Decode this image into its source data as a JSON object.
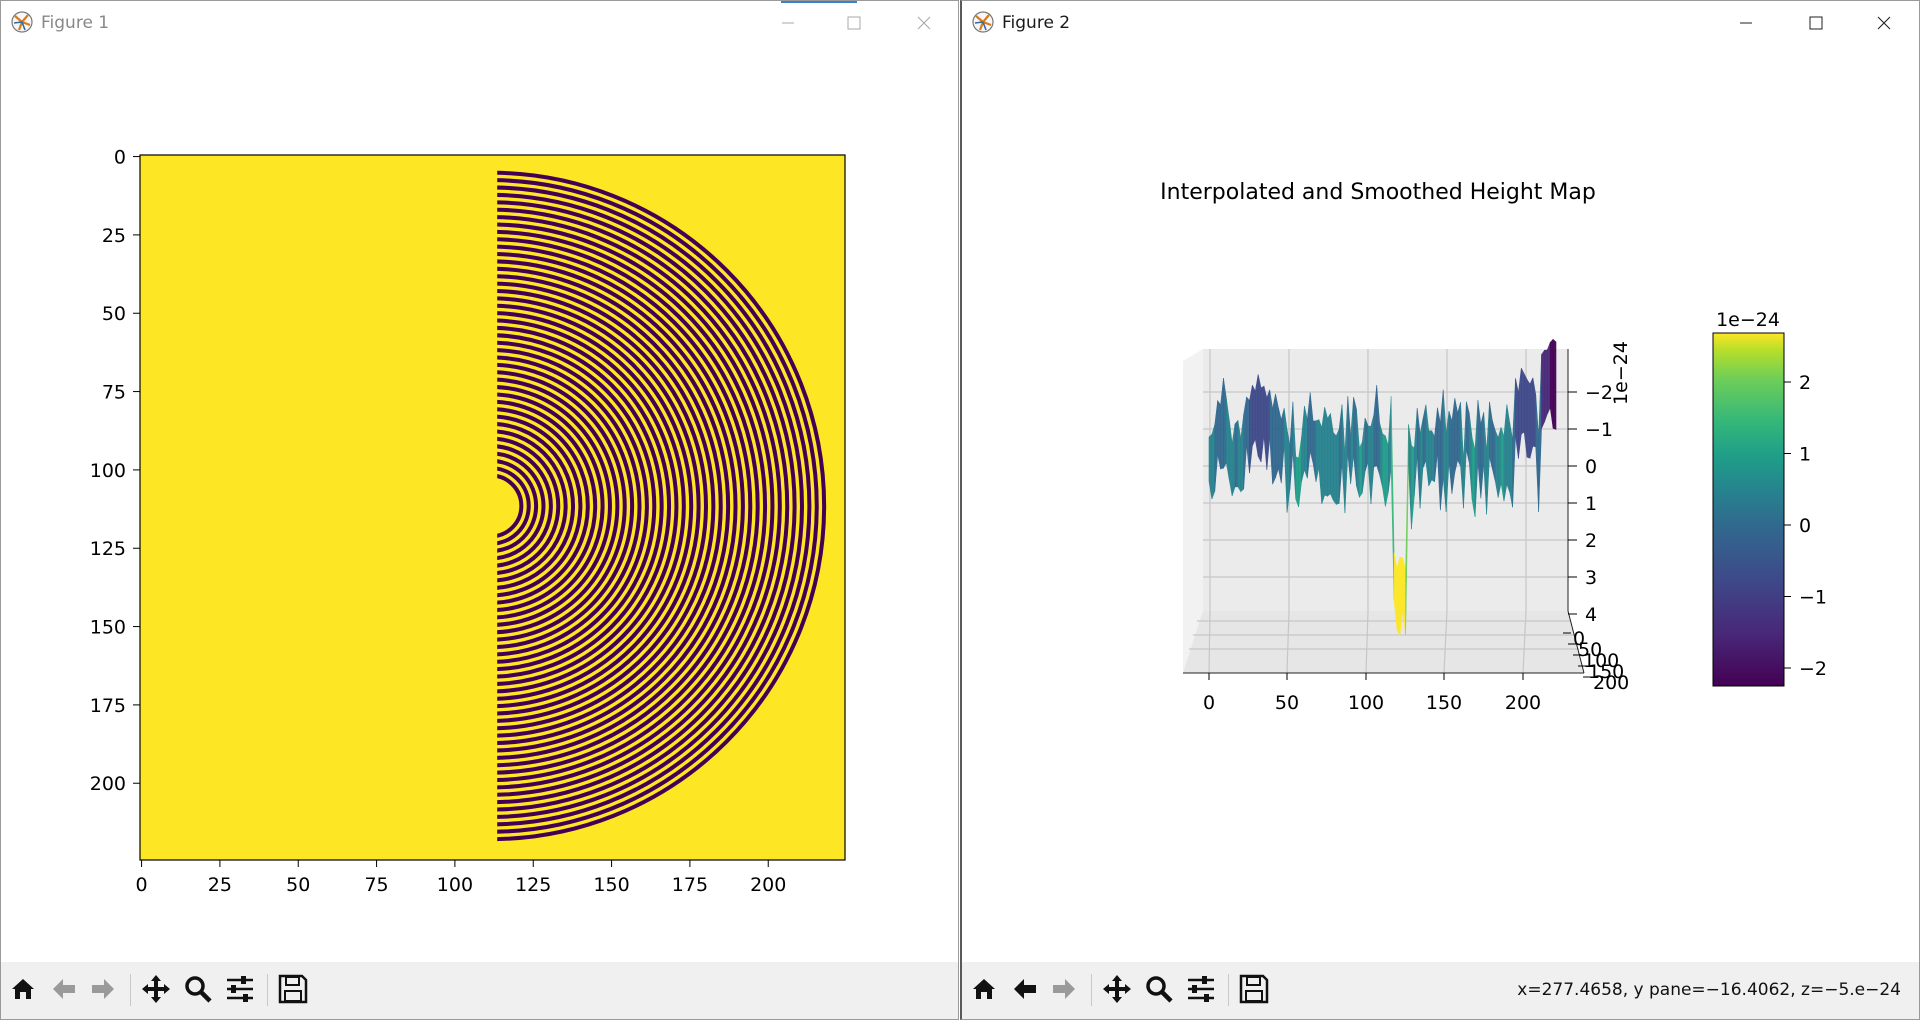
{
  "figure1": {
    "title": "Figure 1",
    "x_ticks": [
      "0",
      "25",
      "50",
      "75",
      "100",
      "125",
      "150",
      "175",
      "200"
    ],
    "y_ticks": [
      "0",
      "25",
      "50",
      "75",
      "100",
      "125",
      "150",
      "175",
      "200"
    ],
    "image_colors": {
      "background": "#fde725",
      "rings": "#440154"
    }
  },
  "figure2": {
    "title": "Figure 2",
    "plot_title": "Interpolated and Smoothed Height Map",
    "x_ticks": [
      "0",
      "50",
      "100",
      "150",
      "200"
    ],
    "y_ticks": [
      "0",
      "50",
      "100",
      "150",
      "200"
    ],
    "z_ticks": [
      "−2",
      "−1",
      "0",
      "1",
      "2",
      "3",
      "4"
    ],
    "z_offset": "1e−24",
    "colorbar": {
      "offset": "1e−24",
      "ticks": [
        "2",
        "1",
        "0",
        "−1",
        "−2"
      ],
      "colormap": "viridis"
    },
    "status": "x=277.4658, y pane=−16.4062, z=−5.e−24"
  },
  "toolbar_icons": [
    "home-icon",
    "back-arrow-icon",
    "forward-arrow-icon",
    "pan-icon",
    "zoom-icon",
    "configure-subplots-icon",
    "save-icon"
  ]
}
